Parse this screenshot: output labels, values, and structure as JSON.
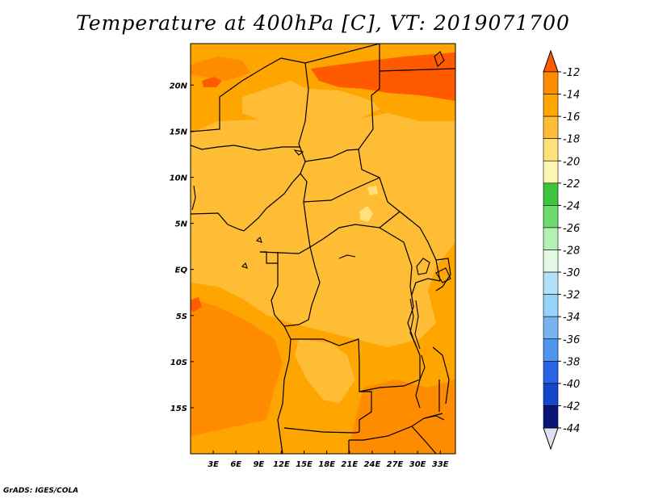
{
  "title": "Temperature at 400hPa [C], VT: 2019071700",
  "credit": "GrADS: IGES/COLA",
  "map": {
    "lon_range": [
      0,
      35
    ],
    "lat_range": [
      -20,
      24.5
    ],
    "lon_ticks": [
      {
        "lon": 3,
        "label": "3E"
      },
      {
        "lon": 6,
        "label": "6E"
      },
      {
        "lon": 9,
        "label": "9E"
      },
      {
        "lon": 12,
        "label": "12E"
      },
      {
        "lon": 15,
        "label": "15E"
      },
      {
        "lon": 18,
        "label": "18E"
      },
      {
        "lon": 21,
        "label": "21E"
      },
      {
        "lon": 24,
        "label": "24E"
      },
      {
        "lon": 27,
        "label": "27E"
      },
      {
        "lon": 30,
        "label": "30E"
      },
      {
        "lon": 33,
        "label": "33E"
      }
    ],
    "lat_ticks": [
      {
        "lat": 20,
        "label": "20N"
      },
      {
        "lat": 15,
        "label": "15N"
      },
      {
        "lat": 10,
        "label": "10N"
      },
      {
        "lat": 5,
        "label": "5N"
      },
      {
        "lat": 0,
        "label": "EQ"
      },
      {
        "lat": -5,
        "label": "5S"
      },
      {
        "lat": -10,
        "label": "10S"
      },
      {
        "lat": -15,
        "label": "15S"
      }
    ]
  },
  "colorbar": {
    "labels": [
      "-12",
      "-14",
      "-16",
      "-18",
      "-20",
      "-22",
      "-24",
      "-26",
      "-28",
      "-30",
      "-32",
      "-34",
      "-36",
      "-38",
      "-40",
      "-42",
      "-44"
    ],
    "colors": [
      "#ff5a00",
      "#ff8c00",
      "#ffa500",
      "#ffbc35",
      "#ffe07a",
      "#fff5b5",
      "#3cc43c",
      "#6cdc6c",
      "#b4f0b4",
      "#e4fae4",
      "#b4e0fa",
      "#96d2fa",
      "#78b4f0",
      "#5096f0",
      "#2864e6",
      "#1446c8",
      "#0a1478",
      "#e0e0f0"
    ]
  }
}
